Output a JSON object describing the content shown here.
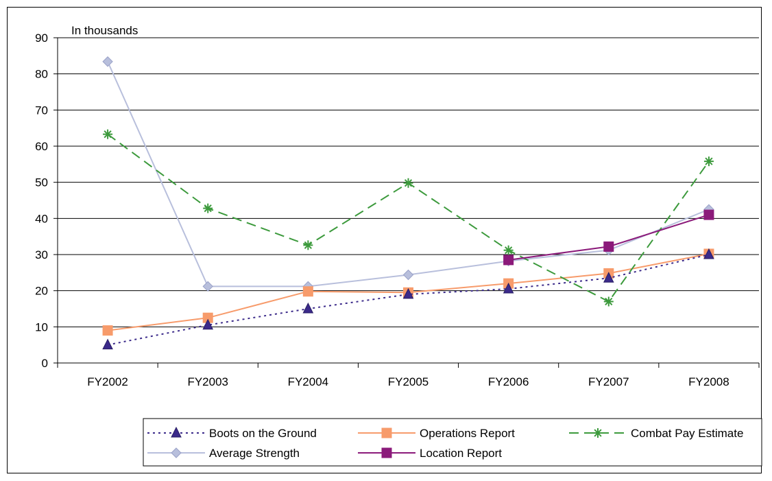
{
  "chart_data": {
    "type": "line",
    "unit_label": "In thousands",
    "categories": [
      "FY2002",
      "FY2003",
      "FY2004",
      "FY2005",
      "FY2006",
      "FY2007",
      "FY2008"
    ],
    "ylim": [
      0,
      90
    ],
    "yticks": [
      "0",
      "10",
      "20",
      "30",
      "40",
      "50",
      "60",
      "70",
      "80",
      "90"
    ],
    "grid": true,
    "legend_position": "bottom",
    "series": [
      {
        "name": "Boots on the Ground",
        "color": "#3b2a8a",
        "dash": "dotted",
        "marker": "triangle",
        "values": [
          5,
          10.5,
          15,
          19,
          20.5,
          23.5,
          30
        ]
      },
      {
        "name": "Operations Report",
        "color": "#f79b6b",
        "dash": "solid",
        "marker": "square",
        "values": [
          9,
          12.5,
          19.8,
          19.5,
          22,
          24.8,
          30.2
        ]
      },
      {
        "name": "Combat Pay Estimate",
        "color": "#3c9a3c",
        "dash": "dashed",
        "marker": "star",
        "values": [
          63.3,
          42.8,
          32.6,
          49.8,
          31.2,
          17,
          55.8
        ]
      },
      {
        "name": "Average Strength",
        "color": "#b8bfdc",
        "dash": "solid",
        "marker": "diamond",
        "values": [
          83.4,
          21.2,
          21.2,
          24.4,
          28.2,
          31.2,
          42.5
        ]
      },
      {
        "name": "Location Report",
        "color": "#8b1a7a",
        "dash": "solid",
        "marker": "square",
        "values": [
          null,
          null,
          null,
          null,
          28.5,
          32.2,
          41
        ]
      }
    ]
  }
}
